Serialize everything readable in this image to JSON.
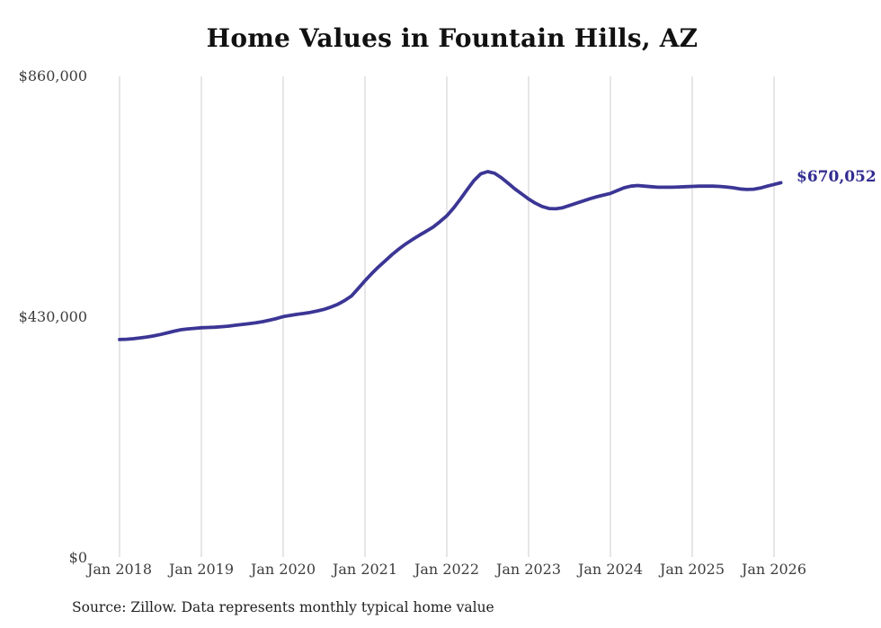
{
  "source_note": "Source: Zillow. Data represents monthly typical home value",
  "colors": {
    "line": "#3b3695",
    "end_label": "#332d91",
    "grid": "#cccccc",
    "tick_text": "#3d3d3d",
    "title_text": "#111111"
  },
  "chart_data": {
    "type": "line",
    "title": "Home Values in Fountain Hills, AZ",
    "xlabel": "",
    "ylabel": "",
    "ylim": [
      0,
      860000
    ],
    "grid": "vertical-only",
    "legend": "none",
    "end_label": "$670,052",
    "end_value": 670052,
    "y_ticks": [
      {
        "value": 0,
        "label": "$0"
      },
      {
        "value": 430000,
        "label": "$430,000"
      },
      {
        "value": 860000,
        "label": "$860,000"
      }
    ],
    "x_tick_labels": [
      "Jan 2018",
      "Jan 2019",
      "Jan 2020",
      "Jan 2021",
      "Jan 2022",
      "Jan 2023",
      "Jan 2024",
      "Jan 2025",
      "Jan 2026"
    ],
    "x_start": "Jan 2018",
    "x_frequency": "monthly",
    "series": [
      {
        "name": "Typical home value",
        "values": [
          390000,
          390500,
          391500,
          393000,
          394500,
          396500,
          399000,
          402000,
          405000,
          407500,
          409000,
          410000,
          411000,
          411500,
          412000,
          413000,
          414000,
          415500,
          417000,
          418500,
          420000,
          422000,
          424500,
          427500,
          431000,
          433000,
          435000,
          436500,
          438500,
          441000,
          444000,
          448000,
          453000,
          459500,
          467500,
          481000,
          495000,
          508000,
          520000,
          531000,
          542000,
          552000,
          561000,
          569000,
          576500,
          583500,
          591000,
          600500,
          611000,
          625000,
          641000,
          658000,
          674000,
          686000,
          690000,
          687000,
          679000,
          669000,
          659000,
          650000,
          641000,
          633500,
          627500,
          624000,
          623500,
          625500,
          629500,
          633500,
          637500,
          641500,
          645000,
          648000,
          651000,
          656000,
          661000,
          664000,
          665000,
          664000,
          663000,
          662000,
          662000,
          662000,
          662500,
          663000,
          663500,
          664000,
          664000,
          664000,
          663500,
          662500,
          661000,
          659000,
          658000,
          658500,
          660500,
          664000,
          667000,
          670052
        ]
      }
    ]
  }
}
